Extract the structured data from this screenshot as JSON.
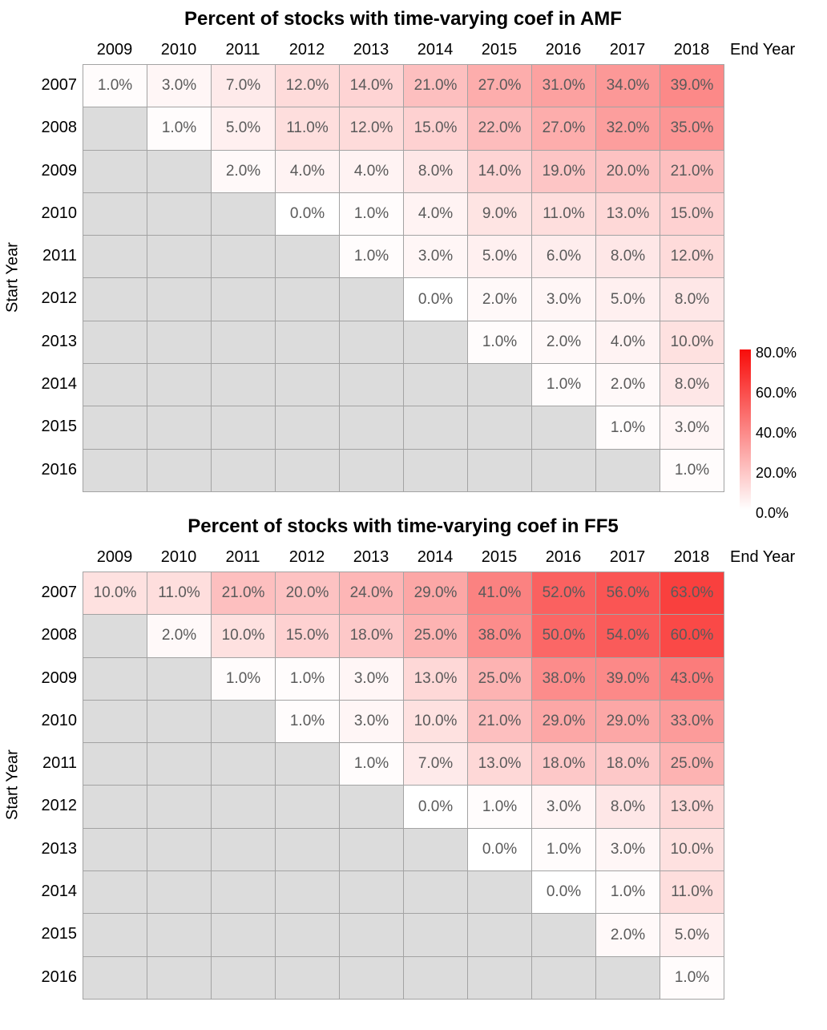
{
  "chart_data": [
    {
      "type": "heatmap",
      "title": "Percent of stocks with time-varying coef in AMF",
      "xlabel": "End Year",
      "ylabel": "Start Year",
      "columns": [
        "2009",
        "2010",
        "2011",
        "2012",
        "2013",
        "2014",
        "2015",
        "2016",
        "2017",
        "2018"
      ],
      "rows": [
        "2007",
        "2008",
        "2009",
        "2010",
        "2011",
        "2012",
        "2013",
        "2014",
        "2015",
        "2016"
      ],
      "values": [
        [
          1.0,
          3.0,
          7.0,
          12.0,
          14.0,
          21.0,
          27.0,
          31.0,
          34.0,
          39.0
        ],
        [
          null,
          1.0,
          5.0,
          11.0,
          12.0,
          15.0,
          22.0,
          27.0,
          32.0,
          35.0
        ],
        [
          null,
          null,
          2.0,
          4.0,
          4.0,
          8.0,
          14.0,
          19.0,
          20.0,
          21.0
        ],
        [
          null,
          null,
          null,
          0.0,
          1.0,
          4.0,
          9.0,
          11.0,
          13.0,
          15.0
        ],
        [
          null,
          null,
          null,
          null,
          1.0,
          3.0,
          5.0,
          6.0,
          8.0,
          12.0
        ],
        [
          null,
          null,
          null,
          null,
          null,
          0.0,
          2.0,
          3.0,
          5.0,
          8.0
        ],
        [
          null,
          null,
          null,
          null,
          null,
          null,
          1.0,
          2.0,
          4.0,
          10.0
        ],
        [
          null,
          null,
          null,
          null,
          null,
          null,
          null,
          1.0,
          2.0,
          8.0
        ],
        [
          null,
          null,
          null,
          null,
          null,
          null,
          null,
          null,
          1.0,
          3.0
        ],
        [
          null,
          null,
          null,
          null,
          null,
          null,
          null,
          null,
          null,
          1.0
        ]
      ],
      "value_suffix": "%",
      "color_scale": {
        "min": 0,
        "max": 80,
        "low": "#FFFFFF",
        "high": "#F80C0A",
        "missing": "#DCDCDC"
      }
    },
    {
      "type": "heatmap",
      "title": "Percent of stocks with time-varying coef in FF5",
      "xlabel": "End Year",
      "ylabel": "Start Year",
      "columns": [
        "2009",
        "2010",
        "2011",
        "2012",
        "2013",
        "2014",
        "2015",
        "2016",
        "2017",
        "2018"
      ],
      "rows": [
        "2007",
        "2008",
        "2009",
        "2010",
        "2011",
        "2012",
        "2013",
        "2014",
        "2015",
        "2016"
      ],
      "values": [
        [
          10.0,
          11.0,
          21.0,
          20.0,
          24.0,
          29.0,
          41.0,
          52.0,
          56.0,
          63.0
        ],
        [
          null,
          2.0,
          10.0,
          15.0,
          18.0,
          25.0,
          38.0,
          50.0,
          54.0,
          60.0
        ],
        [
          null,
          null,
          1.0,
          1.0,
          3.0,
          13.0,
          25.0,
          38.0,
          39.0,
          43.0
        ],
        [
          null,
          null,
          null,
          1.0,
          3.0,
          10.0,
          21.0,
          29.0,
          29.0,
          33.0
        ],
        [
          null,
          null,
          null,
          null,
          1.0,
          7.0,
          13.0,
          18.0,
          18.0,
          25.0
        ],
        [
          null,
          null,
          null,
          null,
          null,
          0.0,
          1.0,
          3.0,
          8.0,
          13.0
        ],
        [
          null,
          null,
          null,
          null,
          null,
          null,
          0.0,
          1.0,
          3.0,
          10.0
        ],
        [
          null,
          null,
          null,
          null,
          null,
          null,
          null,
          0.0,
          1.0,
          11.0
        ],
        [
          null,
          null,
          null,
          null,
          null,
          null,
          null,
          null,
          2.0,
          5.0
        ],
        [
          null,
          null,
          null,
          null,
          null,
          null,
          null,
          null,
          null,
          1.0
        ]
      ],
      "value_suffix": "%",
      "color_scale": {
        "min": 0,
        "max": 80,
        "low": "#FFFFFF",
        "high": "#F80C0A",
        "missing": "#DCDCDC"
      }
    }
  ],
  "legend": {
    "ticks": [
      "80.0%",
      "60.0%",
      "40.0%",
      "20.0%",
      "0.0%"
    ],
    "position": "right",
    "gradient_top": "#F80C0A",
    "gradient_bottom": "#FFFFFF"
  }
}
